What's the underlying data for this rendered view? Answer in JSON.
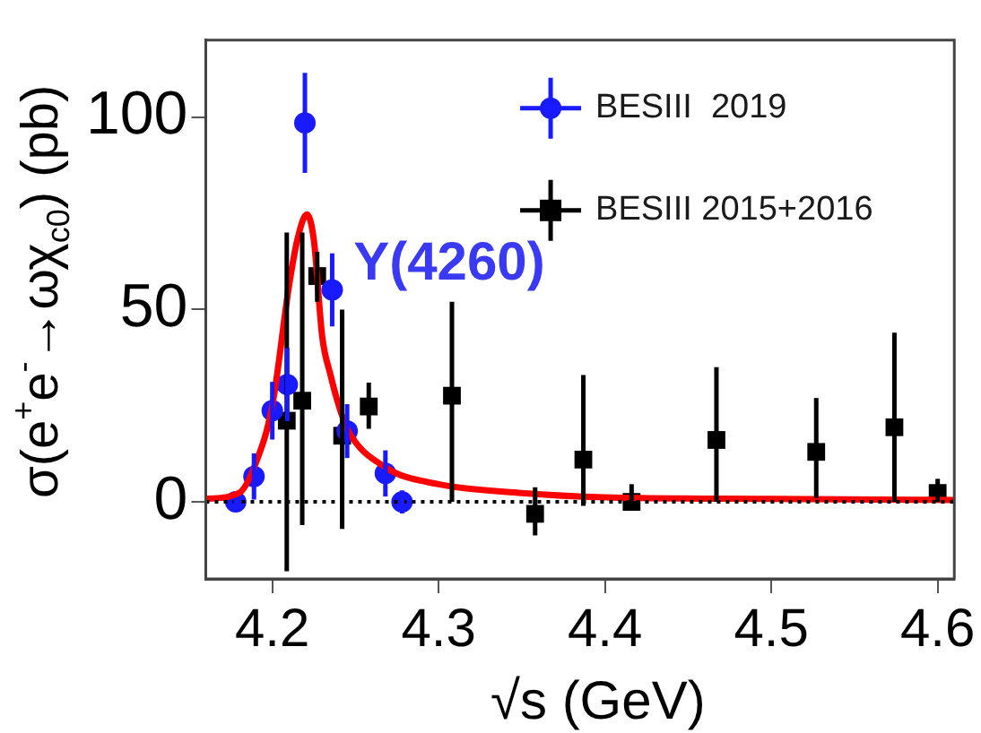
{
  "chart_data": {
    "type": "scatter",
    "xlabel": "√s (GeV)",
    "ylabel": "σ(e$^{+}$e$^{-}$→ωχ$_{c0}$) (pb)",
    "xlim": [
      4.16,
      4.61
    ],
    "xticks": [
      4.2,
      4.3,
      4.4,
      4.5,
      4.6
    ],
    "ylim": [
      -20,
      120
    ],
    "yticks": [
      0,
      50,
      100
    ],
    "grid": false,
    "legend": "top right",
    "annotations": [
      {
        "text": "Y(4260)",
        "x": 4.2208,
        "y": 74.7
      }
    ],
    "ref_lines": [
      {
        "axis": "y",
        "value": 0,
        "color": "#000000",
        "line_style": "dotted"
      }
    ],
    "series": [
      {
        "type": "line",
        "color": "#ff0000",
        "marker": "none",
        "line_style": "solid",
        "x": [
          4.16,
          4.18,
          4.19,
          4.2,
          4.21,
          4.215,
          4.2208,
          4.225,
          4.23,
          4.235,
          4.24,
          4.245,
          4.268,
          4.3,
          4.35,
          4.4,
          4.5,
          4.61
        ],
        "values": [
          0.8,
          2.3,
          10,
          25,
          56,
          68,
          74.7,
          68,
          43,
          33,
          25,
          19,
          9,
          4.6,
          2.3,
          1.2,
          0.8,
          0.5
        ]
      },
      {
        "name": "BESIII  2019",
        "color": "#1a1aff",
        "marker": "circle",
        "x": [
          4.178,
          4.189,
          4.2,
          4.209,
          4.2196,
          4.236,
          4.245,
          4.268,
          4.278
        ],
        "values": [
          0,
          6.6,
          23.7,
          30.5,
          98.5,
          55.1,
          18.4,
          7.4,
          0
        ],
        "errors": [
          1,
          6,
          7.5,
          9.5,
          13,
          9.5,
          7,
          6,
          3
        ]
      },
      {
        "name": "BESIII 2015+2016",
        "color": "#000000",
        "marker": "square",
        "x": [
          4.2087,
          4.218,
          4.227,
          4.242,
          4.258,
          4.308,
          4.358,
          4.387,
          4.416,
          4.467,
          4.527,
          4.574,
          4.6
        ],
        "values": [
          21.1,
          26.3,
          58.7,
          17.2,
          24.8,
          27.6,
          -3.1,
          11,
          0,
          16.1,
          13,
          19.4,
          2.3
        ],
        "errors": [
          [
            -18,
            70
          ],
          [
            -6,
            70
          ],
          [
            52,
            65
          ],
          [
            -7,
            50
          ],
          [
            19,
            31
          ],
          [
            0,
            52
          ],
          [
            -8.7,
            3.8
          ],
          [
            -1,
            33
          ],
          [
            -2,
            4.6
          ],
          [
            0,
            35
          ],
          [
            1,
            27
          ],
          [
            0,
            44
          ],
          [
            0,
            6
          ]
        ]
      }
    ]
  }
}
